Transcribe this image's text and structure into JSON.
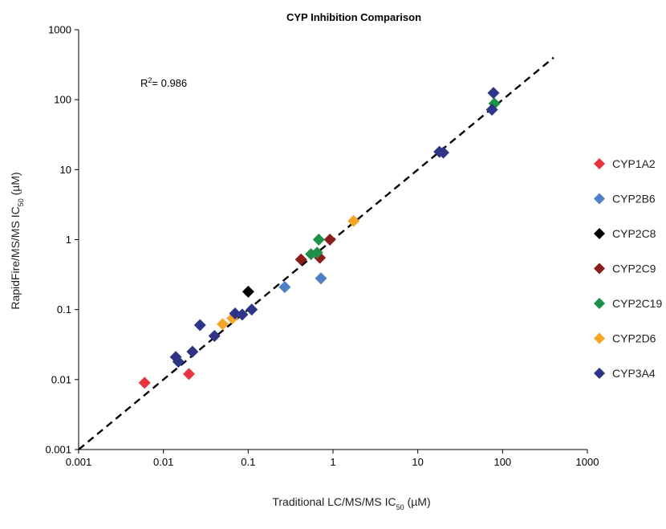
{
  "chart_data": {
    "type": "scatter",
    "title": "CYP Inhibition Comparison",
    "xlabel": {
      "prefix": "Traditional LC/MS/MS IC",
      "sub": "50",
      "suffix": " (µM)"
    },
    "ylabel": {
      "prefix": "RapidFire/MS/MS IC",
      "sub": "50",
      "suffix": " (µM)"
    },
    "x_scale": "log",
    "y_scale": "log",
    "xlim": [
      0.001,
      1000
    ],
    "ylim": [
      0.001,
      1000
    ],
    "x_ticks": [
      {
        "value": 0.001,
        "label": "0.001"
      },
      {
        "value": 0.01,
        "label": "0.01"
      },
      {
        "value": 0.1,
        "label": "0.1"
      },
      {
        "value": 1,
        "label": "1"
      },
      {
        "value": 10,
        "label": "10"
      },
      {
        "value": 100,
        "label": "100"
      },
      {
        "value": 1000,
        "label": "1000"
      }
    ],
    "y_ticks": [
      {
        "value": 0.001,
        "label": "0.001"
      },
      {
        "value": 0.01,
        "label": "0.01"
      },
      {
        "value": 0.1,
        "label": "0.1"
      },
      {
        "value": 1,
        "label": "1"
      },
      {
        "value": 10,
        "label": "10"
      },
      {
        "value": 100,
        "label": "100"
      },
      {
        "value": 1000,
        "label": "1000"
      }
    ],
    "grid": false,
    "legend_position": "right",
    "annotation": {
      "prefix": "R",
      "sup": "2",
      "suffix": "= 0.986"
    },
    "trendline": {
      "style": "dashed",
      "color": "#000000",
      "points": [
        [
          0.001,
          0.001
        ],
        [
          400,
          400
        ]
      ]
    },
    "series": [
      {
        "name": "CYP1A2",
        "color": "#e8353f",
        "points": [
          [
            0.006,
            0.009
          ],
          [
            0.02,
            0.012
          ]
        ]
      },
      {
        "name": "CYP2B6",
        "color": "#4f7fc4",
        "points": [
          [
            0.27,
            0.21
          ],
          [
            0.72,
            0.28
          ]
        ]
      },
      {
        "name": "CYP2C8",
        "color": "#000000",
        "points": [
          [
            0.1,
            0.18
          ]
        ]
      },
      {
        "name": "CYP2C9",
        "color": "#8b1c1c",
        "points": [
          [
            0.42,
            0.52
          ],
          [
            0.7,
            0.55
          ],
          [
            0.92,
            1.0
          ]
        ]
      },
      {
        "name": "CYP2C19",
        "color": "#1e9048",
        "points": [
          [
            0.55,
            0.62
          ],
          [
            0.65,
            0.65
          ],
          [
            0.68,
            1.0
          ],
          [
            80,
            88
          ]
        ]
      },
      {
        "name": "CYP2D6",
        "color": "#f5a623",
        "points": [
          [
            0.05,
            0.062
          ],
          [
            0.065,
            0.075
          ],
          [
            1.75,
            1.85
          ]
        ]
      },
      {
        "name": "CYP3A4",
        "color": "#2e3586",
        "points": [
          [
            0.014,
            0.021
          ],
          [
            0.015,
            0.018
          ],
          [
            0.022,
            0.025
          ],
          [
            0.027,
            0.06
          ],
          [
            0.04,
            0.042
          ],
          [
            0.07,
            0.088
          ],
          [
            0.085,
            0.085
          ],
          [
            0.11,
            0.1
          ],
          [
            18,
            18
          ],
          [
            20,
            17.5
          ],
          [
            75,
            72
          ],
          [
            78,
            125
          ]
        ]
      }
    ]
  }
}
